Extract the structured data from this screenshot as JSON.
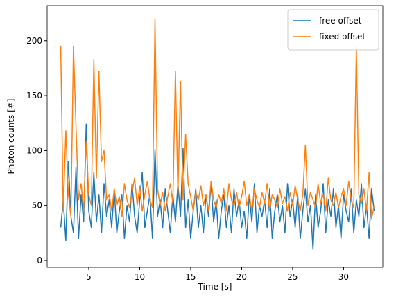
{
  "chart_data": {
    "type": "line",
    "xlabel": "Time [s]",
    "ylabel": "Photon counts [#]",
    "x": [
      2.25,
      2.5,
      2.75,
      3.0,
      3.25,
      3.5,
      3.75,
      4.0,
      4.25,
      4.5,
      4.75,
      5.0,
      5.25,
      5.5,
      5.75,
      6.0,
      6.25,
      6.5,
      6.75,
      7.0,
      7.25,
      7.5,
      7.75,
      8.0,
      8.25,
      8.5,
      8.75,
      9.0,
      9.25,
      9.5,
      9.75,
      10.0,
      10.25,
      10.5,
      10.75,
      11.0,
      11.25,
      11.5,
      11.75,
      12.0,
      12.25,
      12.5,
      12.75,
      13.0,
      13.25,
      13.5,
      13.75,
      14.0,
      14.25,
      14.5,
      14.75,
      15.0,
      15.25,
      15.5,
      15.75,
      16.0,
      16.25,
      16.5,
      16.75,
      17.0,
      17.25,
      17.5,
      17.75,
      18.0,
      18.25,
      18.5,
      18.75,
      19.0,
      19.25,
      19.5,
      19.75,
      20.0,
      20.25,
      20.5,
      20.75,
      21.0,
      21.25,
      21.5,
      21.75,
      22.0,
      22.25,
      22.5,
      22.75,
      23.0,
      23.25,
      23.5,
      23.75,
      24.0,
      24.25,
      24.5,
      24.75,
      25.0,
      25.25,
      25.5,
      25.75,
      26.0,
      26.25,
      26.5,
      26.75,
      27.0,
      27.25,
      27.5,
      27.75,
      28.0,
      28.25,
      28.5,
      28.75,
      29.0,
      29.25,
      29.5,
      29.75,
      30.0,
      30.25,
      30.5,
      30.75,
      31.0,
      31.25,
      31.5,
      31.75,
      32.0,
      32.25,
      32.5,
      32.75,
      33.0
    ],
    "series": [
      {
        "name": "free offset",
        "color": "#1f77b4",
        "values": [
          30,
          55,
          18,
          90,
          40,
          25,
          85,
          20,
          60,
          35,
          124,
          45,
          30,
          80,
          35,
          60,
          25,
          70,
          40,
          55,
          30,
          65,
          25,
          45,
          60,
          20,
          50,
          35,
          70,
          40,
          25,
          55,
          80,
          30,
          45,
          60,
          20,
          101,
          40,
          55,
          30,
          65,
          45,
          25,
          60,
          35,
          70,
          40,
          102,
          30,
          55,
          20,
          45,
          65,
          30,
          50,
          25,
          60,
          40,
          70,
          35,
          55,
          20,
          45,
          60,
          30,
          50,
          25,
          65,
          40,
          55,
          30,
          45,
          20,
          60,
          35,
          70,
          25,
          50,
          40,
          55,
          30,
          65,
          20,
          45,
          60,
          35,
          50,
          25,
          70,
          40,
          55,
          30,
          60,
          20,
          45,
          65,
          35,
          50,
          10,
          60,
          30,
          45,
          70,
          25,
          55,
          40,
          65,
          30,
          50,
          20,
          60,
          45,
          35,
          65,
          25,
          55,
          40,
          70,
          30,
          50,
          20,
          65,
          45
        ]
      },
      {
        "name": "fixed offset",
        "color": "#ff7f0e",
        "values": [
          195,
          45,
          118,
          60,
          40,
          195,
          122,
          55,
          70,
          45,
          108,
          60,
          50,
          183,
          75,
          172,
          90,
          100,
          55,
          60,
          45,
          65,
          50,
          58,
          40,
          70,
          55,
          48,
          62,
          75,
          50,
          68,
          45,
          60,
          72,
          55,
          48,
          220,
          65,
          50,
          62,
          45,
          58,
          70,
          52,
          172,
          60,
          163,
          55,
          115,
          70,
          58,
          45,
          62,
          55,
          68,
          50,
          60,
          45,
          72,
          55,
          48,
          60,
          52,
          65,
          45,
          70,
          55,
          50,
          62,
          48,
          58,
          72,
          50,
          60,
          45,
          65,
          55,
          48,
          62,
          52,
          70,
          45,
          60,
          55,
          48,
          65,
          52,
          58,
          45,
          62,
          50,
          68,
          55,
          45,
          60,
          105,
          50,
          62,
          55,
          48,
          70,
          52,
          60,
          45,
          75,
          55,
          50,
          62,
          48,
          58,
          65,
          50,
          72,
          55,
          48,
          195,
          60,
          52,
          65,
          45,
          80,
          38,
          50
        ]
      }
    ],
    "xlim": [
      0.92,
      33.85
    ],
    "ylim": [
      -6.3,
      232
    ],
    "xticks": [
      5,
      10,
      15,
      20,
      25,
      30
    ],
    "yticks": [
      0,
      50,
      100,
      150,
      200
    ],
    "legend": "upper right"
  }
}
